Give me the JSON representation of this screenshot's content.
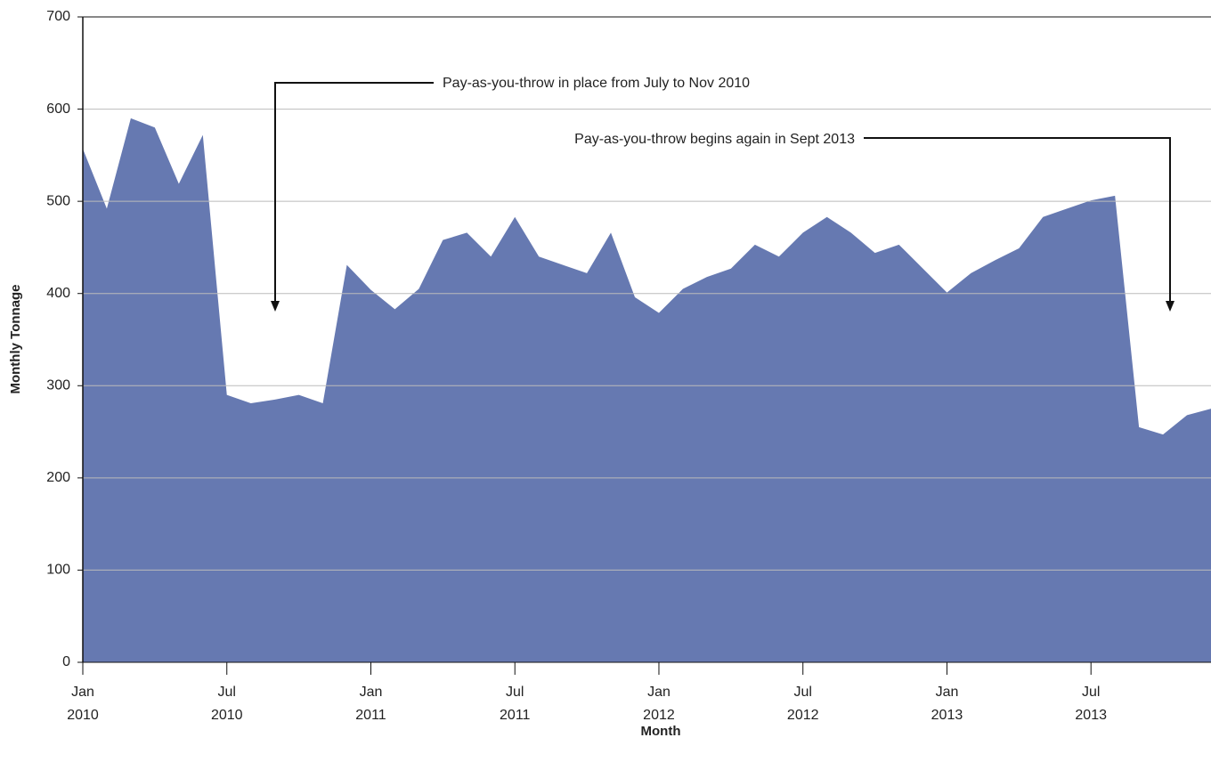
{
  "chart_data": {
    "type": "area",
    "y_label": "Monthly Tonnage",
    "x_label": "Month",
    "annotations": [
      "Pay-as-you-throw in place from July to Nov 2010",
      "Pay-as-you-throw begins again in Sept 2013"
    ],
    "x": [
      "2010-01",
      "2010-02",
      "2010-03",
      "2010-04",
      "2010-05",
      "2010-06",
      "2010-07",
      "2010-08",
      "2010-09",
      "2010-10",
      "2010-11",
      "2010-12",
      "2011-01",
      "2011-02",
      "2011-03",
      "2011-04",
      "2011-05",
      "2011-06",
      "2011-07",
      "2011-08",
      "2011-09",
      "2011-10",
      "2011-11",
      "2011-12",
      "2012-01",
      "2012-02",
      "2012-03",
      "2012-04",
      "2012-05",
      "2012-06",
      "2012-07",
      "2012-08",
      "2012-09",
      "2012-10",
      "2012-11",
      "2012-12",
      "2013-01",
      "2013-02",
      "2013-03",
      "2013-04",
      "2013-05",
      "2013-06",
      "2013-07",
      "2013-08",
      "2013-09",
      "2013-10",
      "2013-11",
      "2013-12"
    ],
    "values": [
      557,
      492,
      590,
      580,
      519,
      572,
      290,
      281,
      285,
      290,
      281,
      431,
      404,
      383,
      405,
      458,
      466,
      440,
      483,
      440,
      431,
      422,
      466,
      396,
      379,
      405,
      418,
      427,
      453,
      440,
      466,
      483,
      466,
      444,
      453,
      427,
      401,
      422,
      436,
      449,
      483,
      492,
      501,
      506,
      255,
      247,
      268,
      275
    ],
    "color": "#6679b1",
    "xlim": [
      "2010-01",
      "2013-12"
    ],
    "xticks": [
      {
        "value": "2010-01",
        "label": [
          "Jan",
          "2010"
        ]
      },
      {
        "value": "2010-07",
        "label": [
          "Jul",
          "2010"
        ]
      },
      {
        "value": "2011-01",
        "label": [
          "Jan",
          "2011"
        ]
      },
      {
        "value": "2011-07",
        "label": [
          "Jul",
          "2011"
        ]
      },
      {
        "value": "2012-01",
        "label": [
          "Jan",
          "2012"
        ]
      },
      {
        "value": "2012-07",
        "label": [
          "Jul",
          "2012"
        ]
      },
      {
        "value": "2013-01",
        "label": [
          "Jan",
          "2013"
        ]
      },
      {
        "value": "2013-07",
        "label": [
          "Jul",
          "2013"
        ]
      }
    ],
    "ylim": [
      0,
      700
    ],
    "yticks": [
      0,
      100,
      200,
      300,
      400,
      500,
      600,
      700
    ],
    "grid": true
  }
}
